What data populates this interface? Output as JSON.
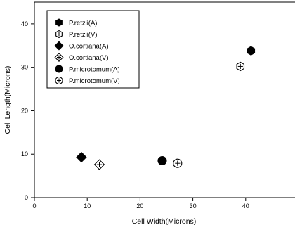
{
  "chart_data": {
    "type": "scatter",
    "title": "",
    "xlabel": "Cell Width(Microns)",
    "ylabel": "Cell Length(Microns)",
    "xlim": [
      0,
      50
    ],
    "ylim": [
      0,
      45
    ],
    "xticks": [
      0,
      10,
      20,
      30,
      40,
      50
    ],
    "yticks": [
      0,
      10,
      20,
      30,
      40
    ],
    "grid": false,
    "legend_position": "top-left",
    "series": [
      {
        "name": "P.retzii(A)",
        "marker": "hexagon",
        "filled": true,
        "points": [
          {
            "x": 41,
            "y": 33.8
          }
        ]
      },
      {
        "name": "P.retzii(V)",
        "marker": "hexagon",
        "filled": false,
        "points": [
          {
            "x": 39,
            "y": 30.2
          }
        ]
      },
      {
        "name": "O.cortiana(A)",
        "marker": "diamond",
        "filled": true,
        "points": [
          {
            "x": 8.9,
            "y": 9.3
          }
        ]
      },
      {
        "name": "O.cortiana(V)",
        "marker": "diamond",
        "filled": false,
        "points": [
          {
            "x": 12.3,
            "y": 7.6
          }
        ]
      },
      {
        "name": "P.microtomum(A)",
        "marker": "circle",
        "filled": true,
        "points": [
          {
            "x": 24.2,
            "y": 8.5
          }
        ]
      },
      {
        "name": "P.microtomum(V)",
        "marker": "circle",
        "filled": false,
        "points": [
          {
            "x": 27.1,
            "y": 7.9
          }
        ]
      }
    ]
  }
}
